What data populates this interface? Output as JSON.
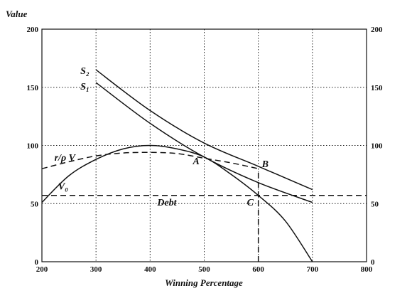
{
  "chart_data": {
    "type": "line",
    "xlabel": "Winning Percentage",
    "ylabel": "Value",
    "xlim": [
      200,
      800
    ],
    "ylim": [
      0,
      200
    ],
    "x_ticks": [
      200,
      300,
      400,
      500,
      600,
      700,
      800
    ],
    "y_ticks": [
      0,
      50,
      100,
      150,
      200
    ],
    "right_y_ticks": [
      0,
      50,
      100,
      150,
      200
    ],
    "grid": true,
    "series": [
      {
        "name": "S₂",
        "style": "solid",
        "x": [
          300,
          400,
          500,
          600,
          700
        ],
        "y": [
          165,
          130,
          102,
          82,
          62
        ]
      },
      {
        "name": "S₁",
        "style": "solid",
        "x": [
          300,
          400,
          500,
          600,
          700
        ],
        "y": [
          154,
          119,
          90,
          68,
          51
        ]
      },
      {
        "name": "r/ρ V",
        "style": "dashed",
        "x": [
          200,
          250,
          300,
          350,
          400,
          450,
          500,
          550,
          600
        ],
        "y": [
          80,
          86,
          91,
          93.5,
          94,
          93,
          89,
          85,
          80
        ]
      },
      {
        "name": "V₀",
        "style": "solid",
        "x": [
          200,
          250,
          300,
          350,
          400,
          450,
          500,
          550,
          600,
          650,
          700
        ],
        "y": [
          51,
          74,
          88,
          97,
          100,
          97,
          90,
          75,
          57,
          35,
          0
        ]
      },
      {
        "name": "Debt",
        "style": "dashed",
        "x": [
          200,
          800
        ],
        "y": [
          57,
          57
        ]
      }
    ],
    "annotations": [
      {
        "text": "A",
        "x": 500,
        "y": 90
      },
      {
        "text": "B",
        "x": 600,
        "y": 80
      },
      {
        "text": "C",
        "x": 600,
        "y": 57
      }
    ],
    "vertical_marker": {
      "x": 600,
      "y_from": 0,
      "y_to": 80,
      "style": "dashed"
    }
  }
}
